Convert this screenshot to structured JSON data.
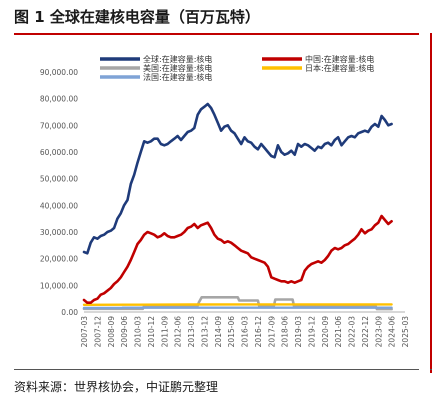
{
  "figure": {
    "title": "图 1  全球在建核电容量（百万瓦特）",
    "source": "资料来源：世界核协会，中证鹏元整理"
  },
  "chart_data": {
    "type": "line",
    "ylim": [
      0,
      90000
    ],
    "y_ticks": [
      "0.00",
      "10,000.00",
      "20,000.00",
      "30,000.00",
      "40,000.00",
      "50,000.00",
      "60,000.00",
      "70,000.00",
      "80,000.00",
      "90,000.00"
    ],
    "x_ticks": [
      "2007-03",
      "2007-12",
      "2008-09",
      "2009-06",
      "2010-03",
      "2010-12",
      "2011-09",
      "2012-06",
      "2013-03",
      "2013-12",
      "2014-09",
      "2015-06",
      "2016-03",
      "2016-12",
      "2017-09",
      "2018-06",
      "2019-03",
      "2019-12",
      "2020-09",
      "2021-06",
      "2022-03",
      "2022-12",
      "2023-09",
      "2024-06",
      "2025-03"
    ],
    "legend_position": "top",
    "grid": false,
    "series": [
      {
        "name": "全球:在建容量:核电",
        "color": "#1f3b7a",
        "points": [
          [
            0,
            22500
          ],
          [
            0.25,
            22000
          ],
          [
            0.5,
            26000
          ],
          [
            0.75,
            28000
          ],
          [
            1,
            27500
          ],
          [
            1.25,
            28500
          ],
          [
            1.5,
            29000
          ],
          [
            1.75,
            30000
          ],
          [
            2,
            30500
          ],
          [
            2.25,
            31500
          ],
          [
            2.5,
            35000
          ],
          [
            2.75,
            37000
          ],
          [
            3,
            40000
          ],
          [
            3.25,
            42000
          ],
          [
            3.5,
            48000
          ],
          [
            3.75,
            51500
          ],
          [
            4,
            56000
          ],
          [
            4.25,
            60000
          ],
          [
            4.5,
            64000
          ],
          [
            4.75,
            63500
          ],
          [
            5,
            64000
          ],
          [
            5.25,
            65000
          ],
          [
            5.5,
            65000
          ],
          [
            5.75,
            63000
          ],
          [
            6,
            62500
          ],
          [
            6.25,
            63000
          ],
          [
            6.5,
            64000
          ],
          [
            6.75,
            65000
          ],
          [
            7,
            66000
          ],
          [
            7.25,
            64500
          ],
          [
            7.5,
            66000
          ],
          [
            7.75,
            67500
          ],
          [
            8,
            68000
          ],
          [
            8.25,
            69000
          ],
          [
            8.5,
            74000
          ],
          [
            8.75,
            76000
          ],
          [
            9,
            77000
          ],
          [
            9.25,
            78000
          ],
          [
            9.5,
            76500
          ],
          [
            9.75,
            74000
          ],
          [
            10,
            71000
          ],
          [
            10.25,
            68000
          ],
          [
            10.5,
            69500
          ],
          [
            10.75,
            70000
          ],
          [
            11,
            68000
          ],
          [
            11.25,
            67000
          ],
          [
            11.5,
            65000
          ],
          [
            11.75,
            63000
          ],
          [
            12,
            65500
          ],
          [
            12.25,
            64000
          ],
          [
            12.5,
            63500
          ],
          [
            12.75,
            62000
          ],
          [
            13,
            61000
          ],
          [
            13.25,
            63000
          ],
          [
            13.5,
            61500
          ],
          [
            13.75,
            60000
          ],
          [
            14,
            58500
          ],
          [
            14.25,
            58000
          ],
          [
            14.5,
            62500
          ],
          [
            14.75,
            60000
          ],
          [
            15,
            59000
          ],
          [
            15.25,
            59500
          ],
          [
            15.5,
            60500
          ],
          [
            15.75,
            59000
          ],
          [
            16,
            63000
          ],
          [
            16.25,
            62000
          ],
          [
            16.5,
            63000
          ],
          [
            16.75,
            62500
          ],
          [
            17,
            61500
          ],
          [
            17.25,
            60500
          ],
          [
            17.5,
            62000
          ],
          [
            17.75,
            61500
          ],
          [
            18,
            63000
          ],
          [
            18.25,
            63500
          ],
          [
            18.5,
            62500
          ],
          [
            18.75,
            64500
          ],
          [
            19,
            65500
          ],
          [
            19.25,
            62500
          ],
          [
            19.5,
            64000
          ],
          [
            19.75,
            65500
          ],
          [
            20,
            66000
          ],
          [
            20.25,
            65500
          ],
          [
            20.5,
            67000
          ],
          [
            20.75,
            67500
          ],
          [
            21,
            68000
          ],
          [
            21.25,
            67500
          ],
          [
            21.5,
            69500
          ],
          [
            21.75,
            70500
          ],
          [
            22,
            69500
          ],
          [
            22.25,
            73500
          ],
          [
            22.5,
            72000
          ],
          [
            22.75,
            70000
          ],
          [
            23,
            70500
          ]
        ]
      },
      {
        "name": "中国:在建容量:核电",
        "color": "#c00000",
        "points": [
          [
            0,
            4500
          ],
          [
            0.25,
            3500
          ],
          [
            0.5,
            3500
          ],
          [
            0.75,
            4500
          ],
          [
            1,
            5000
          ],
          [
            1.25,
            6500
          ],
          [
            1.5,
            7000
          ],
          [
            1.75,
            8000
          ],
          [
            2,
            9000
          ],
          [
            2.25,
            10500
          ],
          [
            2.5,
            11500
          ],
          [
            2.75,
            13000
          ],
          [
            3,
            15000
          ],
          [
            3.25,
            17000
          ],
          [
            3.5,
            19500
          ],
          [
            3.75,
            22500
          ],
          [
            4,
            25500
          ],
          [
            4.25,
            27000
          ],
          [
            4.5,
            29000
          ],
          [
            4.75,
            30000
          ],
          [
            5,
            29500
          ],
          [
            5.25,
            29000
          ],
          [
            5.5,
            28000
          ],
          [
            5.75,
            28500
          ],
          [
            6,
            29500
          ],
          [
            6.25,
            28500
          ],
          [
            6.5,
            28000
          ],
          [
            6.75,
            28000
          ],
          [
            7,
            28500
          ],
          [
            7.25,
            29000
          ],
          [
            7.5,
            30000
          ],
          [
            7.75,
            31500
          ],
          [
            8,
            32000
          ],
          [
            8.25,
            33000
          ],
          [
            8.5,
            31500
          ],
          [
            8.75,
            32500
          ],
          [
            9,
            33000
          ],
          [
            9.25,
            33500
          ],
          [
            9.5,
            31500
          ],
          [
            9.75,
            29000
          ],
          [
            10,
            27500
          ],
          [
            10.25,
            27000
          ],
          [
            10.5,
            26000
          ],
          [
            10.75,
            26500
          ],
          [
            11,
            26000
          ],
          [
            11.25,
            25000
          ],
          [
            11.5,
            24000
          ],
          [
            11.75,
            23000
          ],
          [
            12,
            22500
          ],
          [
            12.25,
            22000
          ],
          [
            12.5,
            20500
          ],
          [
            12.75,
            20000
          ],
          [
            13,
            19500
          ],
          [
            13.25,
            19000
          ],
          [
            13.5,
            18500
          ],
          [
            13.75,
            17000
          ],
          [
            14,
            13000
          ],
          [
            14.25,
            12500
          ],
          [
            14.5,
            12000
          ],
          [
            14.75,
            11500
          ],
          [
            15,
            11500
          ],
          [
            15.25,
            11000
          ],
          [
            15.5,
            11500
          ],
          [
            15.75,
            11000
          ],
          [
            16,
            11500
          ],
          [
            16.25,
            12000
          ],
          [
            16.5,
            15500
          ],
          [
            16.75,
            17000
          ],
          [
            17,
            18000
          ],
          [
            17.25,
            18500
          ],
          [
            17.5,
            19000
          ],
          [
            17.75,
            18500
          ],
          [
            18,
            19500
          ],
          [
            18.25,
            21000
          ],
          [
            18.5,
            23000
          ],
          [
            18.75,
            24000
          ],
          [
            19,
            23500
          ],
          [
            19.25,
            24000
          ],
          [
            19.5,
            25000
          ],
          [
            19.75,
            25500
          ],
          [
            20,
            26500
          ],
          [
            20.25,
            27500
          ],
          [
            20.5,
            29000
          ],
          [
            20.75,
            31000
          ],
          [
            21,
            29500
          ],
          [
            21.25,
            30500
          ],
          [
            21.5,
            31000
          ],
          [
            21.75,
            32500
          ],
          [
            22,
            33500
          ],
          [
            22.25,
            36000
          ],
          [
            22.5,
            34500
          ],
          [
            22.75,
            33000
          ],
          [
            23,
            34000
          ]
        ]
      },
      {
        "name": "美国:在建容量:核电",
        "color": "#a6a6a6",
        "points": [
          [
            0,
            1200
          ],
          [
            3,
            1200
          ],
          [
            3.2,
            1200
          ],
          [
            4.4,
            1200
          ],
          [
            4.5,
            2400
          ],
          [
            8.5,
            2400
          ],
          [
            8.6,
            3700
          ],
          [
            8.8,
            5500
          ],
          [
            11.5,
            5500
          ],
          [
            11.6,
            4300
          ],
          [
            13,
            4300
          ],
          [
            13.1,
            2300
          ],
          [
            14.2,
            2300
          ],
          [
            14.3,
            4700
          ],
          [
            15.6,
            4700
          ],
          [
            15.7,
            2200
          ],
          [
            21.8,
            2200
          ],
          [
            21.9,
            1100
          ],
          [
            23,
            1100
          ]
        ]
      },
      {
        "name": "日本:在建容量:核电",
        "color": "#ffc000",
        "points": [
          [
            0,
            2700
          ],
          [
            4,
            2750
          ],
          [
            8,
            2800
          ],
          [
            12,
            2850
          ],
          [
            16,
            2850
          ],
          [
            20,
            2800
          ],
          [
            23,
            2850
          ]
        ]
      },
      {
        "name": "法国:在建容量:核电",
        "color": "#7fa3d6",
        "points": [
          [
            0,
            1500
          ],
          [
            2.8,
            1500
          ],
          [
            2.9,
            1600
          ],
          [
            23,
            1600
          ]
        ]
      }
    ]
  }
}
